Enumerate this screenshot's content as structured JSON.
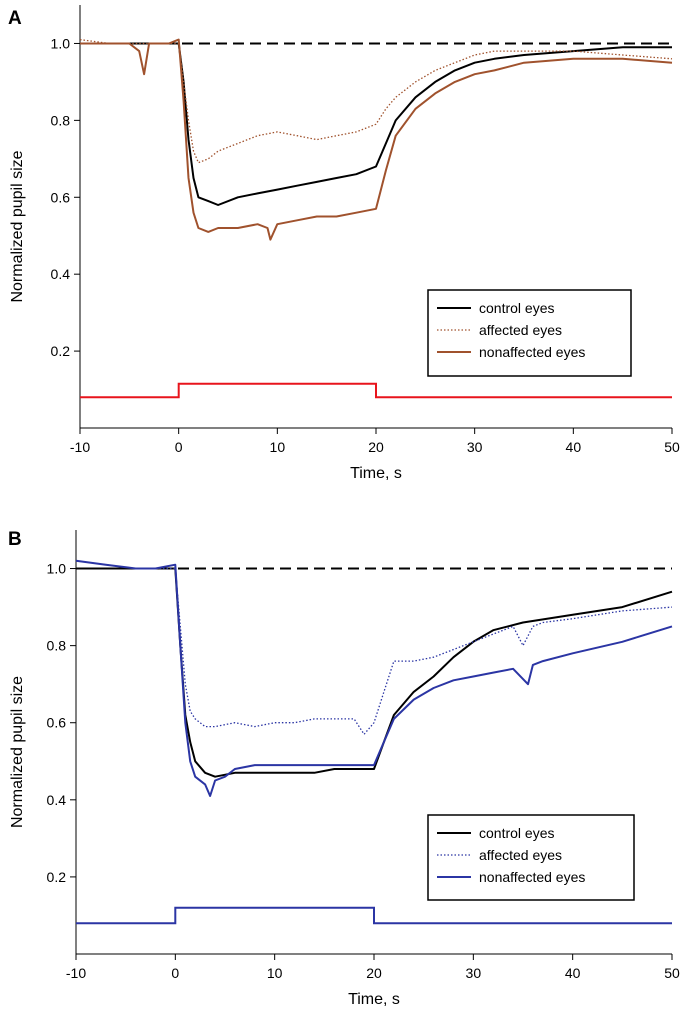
{
  "chart_data": [
    {
      "panel": "A",
      "type": "line",
      "xlabel": "Time, s",
      "ylabel": "Normalized pupil size",
      "xlim": [
        -10,
        50
      ],
      "ylim": [
        0,
        1.1
      ],
      "xticks": [
        -10,
        0,
        10,
        20,
        30,
        40,
        50
      ],
      "yticks": [
        0.2,
        0.4,
        0.6,
        0.8,
        1.0
      ],
      "xtick_labels": [
        "-10",
        "0",
        "10",
        "20",
        "30",
        "40",
        "50"
      ],
      "ytick_labels": [
        "0.2",
        "0.4",
        "0.6",
        "0.8",
        "1.0"
      ],
      "reference_line": {
        "y": 1.0,
        "style": "dashed",
        "color": "#000000"
      },
      "stimulus": {
        "color": "#e8141c",
        "x": [
          -10,
          0,
          0,
          20,
          20,
          50
        ],
        "y": [
          0.08,
          0.08,
          0.115,
          0.115,
          0.08,
          0.08
        ]
      },
      "legend_position": "lower-right",
      "series": [
        {
          "name": "control eyes",
          "color": "#000000",
          "style": "solid",
          "x": [
            -10,
            -7,
            -4,
            -2,
            0,
            0.5,
            1,
            1.5,
            2,
            3,
            4,
            6,
            8,
            10,
            12,
            14,
            16,
            18,
            20,
            21,
            22,
            24,
            26,
            28,
            30,
            32,
            35,
            40,
            45,
            50
          ],
          "y": [
            1.0,
            1.0,
            1.0,
            1.0,
            1.0,
            0.9,
            0.75,
            0.65,
            0.6,
            0.59,
            0.58,
            0.6,
            0.61,
            0.62,
            0.63,
            0.64,
            0.65,
            0.66,
            0.68,
            0.74,
            0.8,
            0.86,
            0.9,
            0.93,
            0.95,
            0.96,
            0.97,
            0.98,
            0.99,
            0.99
          ]
        },
        {
          "name": "affected eyes",
          "color": "#a0522d",
          "style": "dotted",
          "x": [
            -10,
            -7,
            -4,
            -2,
            0,
            0.5,
            1,
            1.5,
            2,
            3,
            4,
            6,
            8,
            10,
            12,
            14,
            16,
            18,
            20,
            21,
            22,
            24,
            26,
            28,
            30,
            32,
            35,
            40,
            45,
            50
          ],
          "y": [
            1.01,
            1.0,
            1.0,
            1.0,
            1.0,
            0.9,
            0.8,
            0.72,
            0.69,
            0.7,
            0.72,
            0.74,
            0.76,
            0.77,
            0.76,
            0.75,
            0.76,
            0.77,
            0.79,
            0.83,
            0.86,
            0.9,
            0.93,
            0.95,
            0.97,
            0.98,
            0.98,
            0.98,
            0.97,
            0.96
          ]
        },
        {
          "name": "nonaffected eyes",
          "color": "#a0522d",
          "style": "solid",
          "x": [
            -10,
            -7,
            -5,
            -4,
            -3.5,
            -3,
            -2.5,
            -1,
            0,
            0.5,
            1,
            1.5,
            2,
            3,
            4,
            6,
            8,
            9,
            9.3,
            10,
            12,
            14,
            16,
            18,
            20,
            21,
            22,
            24,
            26,
            28,
            30,
            32,
            35,
            40,
            45,
            50
          ],
          "y": [
            1.0,
            1.0,
            1.0,
            0.98,
            0.92,
            1.0,
            1.0,
            1.0,
            1.01,
            0.85,
            0.65,
            0.56,
            0.52,
            0.51,
            0.52,
            0.52,
            0.53,
            0.52,
            0.49,
            0.53,
            0.54,
            0.55,
            0.55,
            0.56,
            0.57,
            0.67,
            0.76,
            0.83,
            0.87,
            0.9,
            0.92,
            0.93,
            0.95,
            0.96,
            0.96,
            0.95
          ]
        }
      ]
    },
    {
      "panel": "B",
      "type": "line",
      "xlabel": "Time, s",
      "ylabel": "Normalized pupil size",
      "xlim": [
        -10,
        50
      ],
      "ylim": [
        0,
        1.1
      ],
      "xticks": [
        -10,
        0,
        10,
        20,
        30,
        40,
        50
      ],
      "yticks": [
        0.2,
        0.4,
        0.6,
        0.8,
        1.0
      ],
      "xtick_labels": [
        "-10",
        "0",
        "10",
        "20",
        "30",
        "40",
        "50"
      ],
      "ytick_labels": [
        "0.2",
        "0.4",
        "0.6",
        "0.8",
        "1.0"
      ],
      "reference_line": {
        "y": 1.0,
        "style": "dashed",
        "color": "#000000"
      },
      "stimulus": {
        "color": "#2b35a4",
        "x": [
          -10,
          0,
          0,
          20,
          20,
          50
        ],
        "y": [
          0.08,
          0.08,
          0.12,
          0.12,
          0.08,
          0.08
        ]
      },
      "legend_position": "lower-right",
      "series": [
        {
          "name": "control eyes",
          "color": "#000000",
          "style": "solid",
          "x": [
            -10,
            -7,
            -4,
            -2,
            0,
            0.5,
            1,
            1.5,
            2,
            3,
            4,
            6,
            8,
            10,
            12,
            14,
            16,
            18,
            20,
            21,
            22,
            24,
            26,
            28,
            30,
            32,
            35,
            40,
            45,
            50
          ],
          "y": [
            1.0,
            1.0,
            1.0,
            1.0,
            1.0,
            0.8,
            0.62,
            0.55,
            0.5,
            0.47,
            0.46,
            0.47,
            0.47,
            0.47,
            0.47,
            0.47,
            0.48,
            0.48,
            0.48,
            0.55,
            0.62,
            0.68,
            0.72,
            0.77,
            0.81,
            0.84,
            0.86,
            0.88,
            0.9,
            0.94
          ]
        },
        {
          "name": "affected eyes",
          "color": "#2b35a4",
          "style": "dotted",
          "x": [
            -10,
            -7,
            -4,
            -2,
            0,
            0.5,
            1,
            1.5,
            2,
            3,
            4,
            6,
            8,
            10,
            12,
            14,
            16,
            18,
            19,
            20,
            21,
            22,
            24,
            26,
            28,
            30,
            32,
            34,
            35,
            36,
            37,
            40,
            45,
            50
          ],
          "y": [
            1.02,
            1.01,
            1.0,
            1.0,
            1.0,
            0.85,
            0.7,
            0.63,
            0.61,
            0.59,
            0.59,
            0.6,
            0.59,
            0.6,
            0.6,
            0.61,
            0.61,
            0.61,
            0.57,
            0.6,
            0.68,
            0.76,
            0.76,
            0.77,
            0.79,
            0.81,
            0.83,
            0.85,
            0.8,
            0.85,
            0.86,
            0.87,
            0.89,
            0.9
          ]
        },
        {
          "name": "nonaffected eyes",
          "color": "#2b35a4",
          "style": "solid",
          "x": [
            -10,
            -7,
            -4,
            -2,
            0,
            0.5,
            1,
            1.5,
            2,
            3,
            3.5,
            4,
            5,
            6,
            8,
            10,
            12,
            14,
            16,
            18,
            20,
            21,
            22,
            24,
            26,
            28,
            30,
            32,
            34,
            35.5,
            36,
            37,
            40,
            45,
            50
          ],
          "y": [
            1.02,
            1.01,
            1.0,
            1.0,
            1.01,
            0.8,
            0.6,
            0.5,
            0.46,
            0.44,
            0.41,
            0.45,
            0.46,
            0.48,
            0.49,
            0.49,
            0.49,
            0.49,
            0.49,
            0.49,
            0.49,
            0.55,
            0.61,
            0.66,
            0.69,
            0.71,
            0.72,
            0.73,
            0.74,
            0.7,
            0.75,
            0.76,
            0.78,
            0.81,
            0.85
          ]
        }
      ]
    }
  ]
}
